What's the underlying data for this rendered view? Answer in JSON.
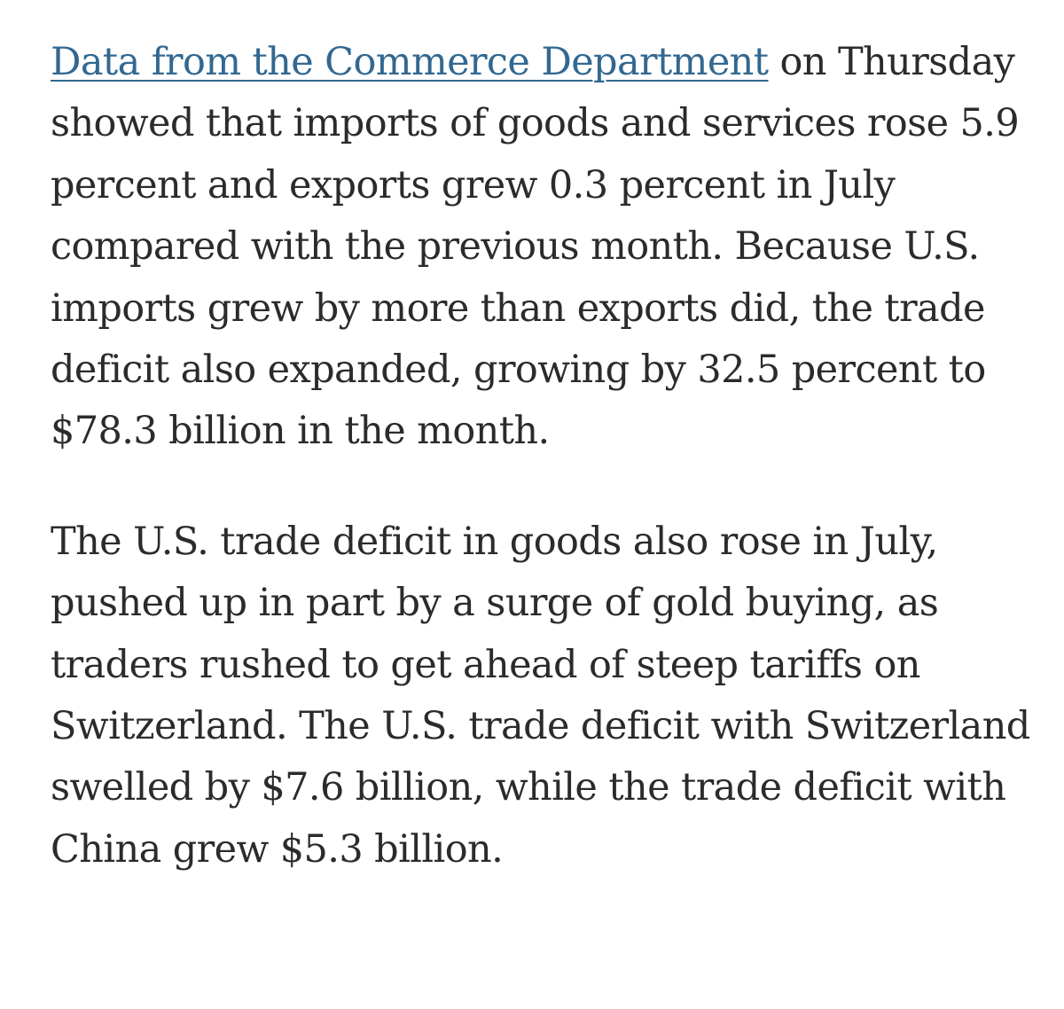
{
  "paragraphs": [
    {
      "link_text": "Data from the Commerce Department",
      "text": " on Thursday showed that imports of goods and services rose 5.9 percent and exports grew 0.3 percent in July compared with the previous month. Because U.S. imports grew by more than exports did, the trade deficit also expanded, growing by 32.5 percent to $78.3 billion in the month."
    },
    {
      "text": "The U.S. trade deficit in goods also rose in July, pushed up in part by a surge of gold buying, as traders rushed to get ahead of steep tariffs on Switzerland. The U.S. trade deficit with Switzerland swelled by $7.6 billion, while the trade deficit with China grew $5.3 billion."
    }
  ],
  "colors": {
    "text": "#2b2b2b",
    "link": "#326891",
    "background": "#ffffff"
  }
}
